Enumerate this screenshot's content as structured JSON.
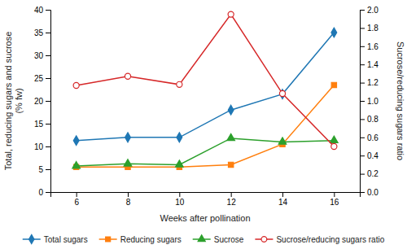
{
  "chart_data": {
    "type": "line",
    "x": [
      6,
      8,
      10,
      12,
      14,
      16
    ],
    "xlabel": "Weeks after pollination",
    "ylabel": "Total, reducing sugars and sucrose\n(% fw)",
    "y2label": "Sucrose/reducing sugars ratio",
    "xlim": [
      5,
      17
    ],
    "xticks": [
      6,
      8,
      10,
      12,
      14,
      16
    ],
    "ylim": [
      0,
      40
    ],
    "yticks": [
      0,
      5,
      10,
      15,
      20,
      25,
      30,
      35,
      40
    ],
    "y2lim": [
      0,
      2
    ],
    "y2ticks": [
      {
        "value": 0,
        "label": "0.0"
      },
      0.2,
      0.4,
      0.6,
      0.8,
      {
        "value": 1.0,
        "label": "1.0"
      },
      1.2,
      1.4,
      1.6,
      1.8,
      {
        "value": 2.0,
        "label": "2.0"
      }
    ],
    "legend": "bottom",
    "series": [
      {
        "name": "Total sugars",
        "values": [
          11.3,
          12.0,
          12.0,
          18.0,
          21.5,
          35.0
        ],
        "marker": "diamond"
      },
      {
        "name": "Reducing sugars",
        "values": [
          5.5,
          5.5,
          5.5,
          6.0,
          10.5,
          23.5
        ],
        "marker": "square"
      },
      {
        "name": "Sucrose",
        "values": [
          5.7,
          6.2,
          6.0,
          11.8,
          11.0,
          11.3
        ],
        "marker": "triangle"
      },
      {
        "name": "Sucrose/reducing sugars ratio",
        "values": [
          1.17,
          1.27,
          1.18,
          1.95,
          1.08,
          0.5
        ],
        "axis": "y2",
        "marker": "circle-open"
      }
    ]
  }
}
